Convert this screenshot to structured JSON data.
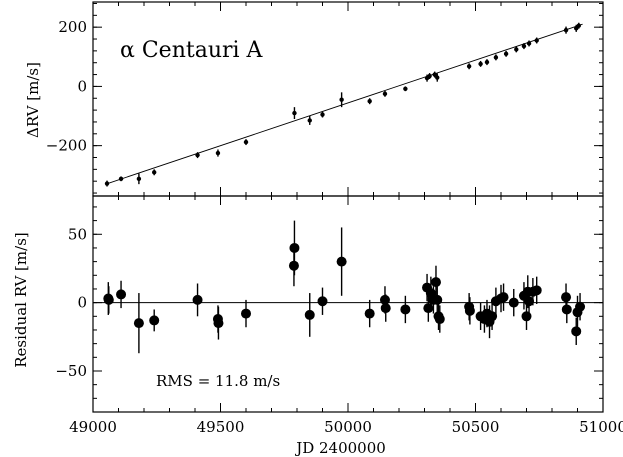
{
  "chart_data": [
    {
      "type": "scatter",
      "panel": "top",
      "annotation": "α Centauri A",
      "ylabel": "ΔRV [m/s]",
      "xlabel": "",
      "xlim": [
        49000,
        51000
      ],
      "ylim": [
        -370,
        285
      ],
      "yticks": [
        -200,
        0,
        200
      ],
      "grid": false,
      "trend_line": {
        "x": [
          49050,
          50920
        ],
        "y": [
          -330,
          210
        ]
      },
      "points": [
        {
          "x": 49055,
          "y": -328,
          "err": 10
        },
        {
          "x": 49110,
          "y": -312,
          "err": 8
        },
        {
          "x": 49180,
          "y": -312,
          "err": 18
        },
        {
          "x": 49240,
          "y": -290,
          "err": 10
        },
        {
          "x": 49410,
          "y": -232,
          "err": 10
        },
        {
          "x": 49490,
          "y": -225,
          "err": 12
        },
        {
          "x": 49600,
          "y": -188,
          "err": 10
        },
        {
          "x": 49790,
          "y": -90,
          "err": 20
        },
        {
          "x": 49850,
          "y": -115,
          "err": 15
        },
        {
          "x": 49900,
          "y": -95,
          "err": 10
        },
        {
          "x": 49975,
          "y": -45,
          "err": 25
        },
        {
          "x": 50085,
          "y": -50,
          "err": 10
        },
        {
          "x": 50145,
          "y": -25,
          "err": 10
        },
        {
          "x": 50225,
          "y": -8,
          "err": 8
        },
        {
          "x": 50310,
          "y": 28,
          "err": 12
        },
        {
          "x": 50320,
          "y": 35,
          "err": 10
        },
        {
          "x": 50340,
          "y": 40,
          "err": 10
        },
        {
          "x": 50350,
          "y": 30,
          "err": 14
        },
        {
          "x": 50475,
          "y": 68,
          "err": 10
        },
        {
          "x": 50520,
          "y": 76,
          "err": 10
        },
        {
          "x": 50545,
          "y": 82,
          "err": 10
        },
        {
          "x": 50580,
          "y": 98,
          "err": 10
        },
        {
          "x": 50620,
          "y": 110,
          "err": 10
        },
        {
          "x": 50660,
          "y": 125,
          "err": 10
        },
        {
          "x": 50690,
          "y": 136,
          "err": 10
        },
        {
          "x": 50710,
          "y": 145,
          "err": 10
        },
        {
          "x": 50740,
          "y": 155,
          "err": 10
        },
        {
          "x": 50855,
          "y": 190,
          "err": 12
        },
        {
          "x": 50895,
          "y": 196,
          "err": 12
        },
        {
          "x": 50905,
          "y": 205,
          "err": 10
        }
      ]
    },
    {
      "type": "scatter",
      "panel": "bottom",
      "annotation": "RMS = 11.8 m/s",
      "ylabel": "Residual RV [m/s]",
      "xlabel": "JD 2400000",
      "xlim": [
        49000,
        51000
      ],
      "ylim": [
        -80,
        78
      ],
      "yticks": [
        -50,
        0,
        50
      ],
      "xticks": [
        49000,
        49500,
        50000,
        50500,
        51000
      ],
      "grid": false,
      "zero_line": 0,
      "points": [
        {
          "x": 49060,
          "y": 3,
          "err": 12
        },
        {
          "x": 49062,
          "y": 2,
          "err": 10
        },
        {
          "x": 49110,
          "y": 6,
          "err": 10
        },
        {
          "x": 49180,
          "y": -15,
          "err": 22
        },
        {
          "x": 49240,
          "y": -13,
          "err": 8
        },
        {
          "x": 49410,
          "y": 2,
          "err": 12
        },
        {
          "x": 49490,
          "y": -12,
          "err": 10
        },
        {
          "x": 49492,
          "y": -15,
          "err": 12
        },
        {
          "x": 49600,
          "y": -8,
          "err": 10
        },
        {
          "x": 49790,
          "y": 40,
          "err": 20
        },
        {
          "x": 49788,
          "y": 27,
          "err": 15
        },
        {
          "x": 49850,
          "y": -9,
          "err": 16
        },
        {
          "x": 49900,
          "y": 1,
          "err": 10
        },
        {
          "x": 49975,
          "y": 30,
          "err": 25
        },
        {
          "x": 50085,
          "y": -8,
          "err": 10
        },
        {
          "x": 50145,
          "y": 2,
          "err": 10
        },
        {
          "x": 50148,
          "y": -4,
          "err": 10
        },
        {
          "x": 50225,
          "y": -5,
          "err": 10
        },
        {
          "x": 50310,
          "y": 11,
          "err": 10
        },
        {
          "x": 50315,
          "y": -4,
          "err": 10
        },
        {
          "x": 50325,
          "y": 7,
          "err": 12
        },
        {
          "x": 50335,
          "y": 2,
          "err": 10
        },
        {
          "x": 50345,
          "y": 15,
          "err": 12
        },
        {
          "x": 50350,
          "y": 2,
          "err": 10
        },
        {
          "x": 50355,
          "y": -10,
          "err": 10
        },
        {
          "x": 50360,
          "y": -12,
          "err": 10
        },
        {
          "x": 50475,
          "y": -3,
          "err": 10
        },
        {
          "x": 50478,
          "y": -6,
          "err": 10
        },
        {
          "x": 50520,
          "y": -10,
          "err": 10
        },
        {
          "x": 50535,
          "y": -12,
          "err": 10
        },
        {
          "x": 50545,
          "y": -8,
          "err": 10
        },
        {
          "x": 50555,
          "y": -14,
          "err": 12
        },
        {
          "x": 50565,
          "y": -10,
          "err": 10
        },
        {
          "x": 50580,
          "y": 1,
          "err": 10
        },
        {
          "x": 50600,
          "y": 3,
          "err": 10
        },
        {
          "x": 50610,
          "y": 4,
          "err": 10
        },
        {
          "x": 50650,
          "y": 0,
          "err": 10
        },
        {
          "x": 50690,
          "y": 5,
          "err": 10
        },
        {
          "x": 50700,
          "y": -10,
          "err": 10
        },
        {
          "x": 50705,
          "y": 8,
          "err": 12
        },
        {
          "x": 50710,
          "y": 1,
          "err": 10
        },
        {
          "x": 50725,
          "y": 8,
          "err": 10
        },
        {
          "x": 50740,
          "y": 9,
          "err": 10
        },
        {
          "x": 50855,
          "y": 4,
          "err": 10
        },
        {
          "x": 50858,
          "y": -5,
          "err": 10
        },
        {
          "x": 50895,
          "y": -21,
          "err": 10
        },
        {
          "x": 50900,
          "y": -7,
          "err": 12
        },
        {
          "x": 50910,
          "y": -3,
          "err": 10
        }
      ]
    }
  ]
}
